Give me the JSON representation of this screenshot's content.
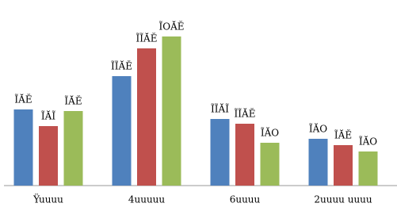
{
  "chart_data": {
    "type": "bar",
    "categories": [
      "Ÿuuuu",
      "4uuuuu",
      "6uuuu",
      "2uuuu uuuu"
    ],
    "series": [
      {
        "color": "#4f81bd",
        "values": [
          96,
          138,
          84,
          59
        ],
        "value_labels": [
          "ĨĂĔ",
          "ĨĨĂĔ",
          "ĨĨĂĨ",
          "ĨĂO"
        ]
      },
      {
        "color": "#c0504d",
        "values": [
          75,
          173,
          78,
          51
        ],
        "value_labels": [
          "ĨĂĨ",
          "ĨĨĂĔ",
          "ĨĨĂĔ",
          "ĨĂĔ"
        ]
      },
      {
        "color": "#9bbb59",
        "values": [
          94,
          188,
          54,
          43
        ],
        "value_labels": [
          "ĨĂĔ",
          "ĨOĂĔ",
          "ĨĂO",
          "ĨĂO"
        ]
      }
    ],
    "ylim": [
      0,
      200
    ]
  }
}
